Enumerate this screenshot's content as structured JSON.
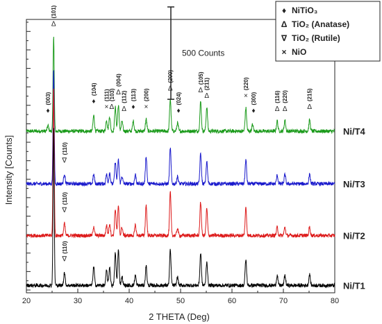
{
  "chart_data": {
    "type": "line",
    "xlabel": "2 THETA (Deg)",
    "ylabel": "Intensity [Counts]",
    "xlim": [
      20,
      80
    ],
    "xticks": [
      "20",
      "30",
      "40",
      "50",
      "60",
      "70",
      "80"
    ],
    "scale_bar": {
      "label": "500 Counts",
      "counts": 500
    },
    "legend": [
      {
        "symbol": "♦",
        "text": "NiTiO₃"
      },
      {
        "symbol": "Δ",
        "text": "TiO₂ (Anatase)"
      },
      {
        "symbol": "∇",
        "text": "TiO₂ (Rutile)"
      },
      {
        "symbol": "×",
        "text": "NiO"
      }
    ],
    "series": [
      {
        "name": "Ni/T4",
        "color": "#1a9a1a",
        "baseline": 860,
        "noise": 10,
        "peaks": [
          [
            24.2,
            30
          ],
          [
            25.3,
            520
          ],
          [
            33.1,
            85
          ],
          [
            35.6,
            60
          ],
          [
            36.2,
            80
          ],
          [
            37.3,
            130
          ],
          [
            37.9,
            140
          ],
          [
            38.6,
            55
          ],
          [
            40.8,
            55
          ],
          [
            43.3,
            65
          ],
          [
            48.0,
            175
          ],
          [
            49.4,
            45
          ],
          [
            53.9,
            160
          ],
          [
            55.1,
            130
          ],
          [
            62.7,
            125
          ],
          [
            64.0,
            35
          ],
          [
            68.8,
            55
          ],
          [
            70.3,
            60
          ],
          [
            75.1,
            60
          ]
        ]
      },
      {
        "name": "Ni/T3",
        "color": "#1a1acc",
        "baseline": 575,
        "noise": 10,
        "peaks": [
          [
            25.3,
            620
          ],
          [
            27.4,
            55
          ],
          [
            33.1,
            50
          ],
          [
            35.6,
            50
          ],
          [
            36.2,
            60
          ],
          [
            37.3,
            120
          ],
          [
            37.9,
            130
          ],
          [
            38.6,
            40
          ],
          [
            41.2,
            50
          ],
          [
            43.3,
            150
          ],
          [
            48.0,
            195
          ],
          [
            49.4,
            40
          ],
          [
            53.9,
            165
          ],
          [
            55.1,
            120
          ],
          [
            62.7,
            130
          ],
          [
            68.8,
            45
          ],
          [
            70.3,
            50
          ],
          [
            75.1,
            50
          ]
        ]
      },
      {
        "name": "Ni/T2",
        "color": "#dd1a1a",
        "baseline": 295,
        "noise": 10,
        "peaks": [
          [
            25.3,
            800
          ],
          [
            27.4,
            65
          ],
          [
            33.1,
            50
          ],
          [
            35.6,
            55
          ],
          [
            36.2,
            65
          ],
          [
            37.3,
            145
          ],
          [
            37.9,
            155
          ],
          [
            38.6,
            45
          ],
          [
            41.2,
            55
          ],
          [
            43.3,
            165
          ],
          [
            48.0,
            235
          ],
          [
            49.4,
            40
          ],
          [
            53.9,
            180
          ],
          [
            55.1,
            145
          ],
          [
            62.7,
            150
          ],
          [
            68.8,
            45
          ],
          [
            70.3,
            45
          ],
          [
            75.1,
            45
          ]
        ]
      },
      {
        "name": "Ni/T1",
        "color": "#000000",
        "baseline": 25,
        "noise": 10,
        "peaks": [
          [
            25.3,
            850
          ],
          [
            27.4,
            70
          ],
          [
            33.1,
            100
          ],
          [
            35.6,
            80
          ],
          [
            36.2,
            100
          ],
          [
            37.3,
            175
          ],
          [
            37.9,
            190
          ],
          [
            38.6,
            50
          ],
          [
            41.2,
            55
          ],
          [
            43.3,
            105
          ],
          [
            48.0,
            190
          ],
          [
            49.4,
            45
          ],
          [
            53.9,
            175
          ],
          [
            55.1,
            130
          ],
          [
            62.7,
            140
          ],
          [
            68.8,
            55
          ],
          [
            70.3,
            55
          ],
          [
            75.1,
            60
          ]
        ]
      }
    ],
    "annotations": [
      {
        "symbol": "♦",
        "hkl": "(003)",
        "x": 24.2,
        "y": 960
      },
      {
        "symbol": "Δ",
        "hkl": "(101)",
        "x": 25.3,
        "y": 1430
      },
      {
        "symbol": "♦",
        "hkl": "(104)",
        "x": 33.1,
        "y": 1010
      },
      {
        "symbol": "×",
        "hkl": "(111)",
        "x": 35.6,
        "y": 980
      },
      {
        "symbol": "Δ",
        "hkl": "(103)",
        "x": 36.6,
        "y": 980
      },
      {
        "symbol": "Δ",
        "hkl": "(004)",
        "x": 37.9,
        "y": 1060
      },
      {
        "symbol": "Δ",
        "hkl": "(112)",
        "x": 39.0,
        "y": 970
      },
      {
        "symbol": "♦",
        "hkl": "(113)",
        "x": 40.8,
        "y": 980
      },
      {
        "symbol": "×",
        "hkl": "(200)",
        "x": 43.3,
        "y": 980
      },
      {
        "symbol": "Δ",
        "hkl": "(200)",
        "x": 48.0,
        "y": 1080
      },
      {
        "symbol": "♦",
        "hkl": "(024)",
        "x": 49.6,
        "y": 960
      },
      {
        "symbol": "Δ",
        "hkl": "(105)",
        "x": 53.9,
        "y": 1070
      },
      {
        "symbol": "Δ",
        "hkl": "(211)",
        "x": 55.1,
        "y": 1040
      },
      {
        "symbol": "×",
        "hkl": "(220)",
        "x": 62.7,
        "y": 1040
      },
      {
        "symbol": "♦",
        "hkl": "(300)",
        "x": 64.2,
        "y": 960
      },
      {
        "symbol": "Δ",
        "hkl": "(116)",
        "x": 68.8,
        "y": 970
      },
      {
        "symbol": "Δ",
        "hkl": "(220)",
        "x": 70.3,
        "y": 970
      },
      {
        "symbol": "Δ",
        "hkl": "(215)",
        "x": 75.1,
        "y": 980
      },
      {
        "symbol": "∇",
        "hkl": "(110)",
        "x": 27.4,
        "y": 690
      },
      {
        "symbol": "∇",
        "hkl": "(110)",
        "x": 27.4,
        "y": 420
      },
      {
        "symbol": "∇",
        "hkl": "(110)",
        "x": 27.4,
        "y": 155
      }
    ]
  }
}
